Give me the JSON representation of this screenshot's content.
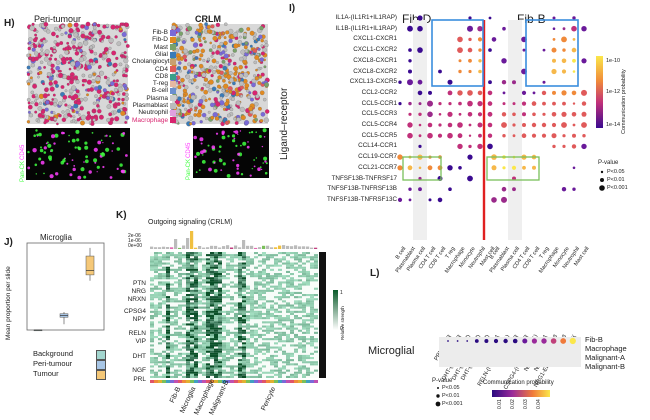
{
  "panel_h": {
    "letter": "H)",
    "peri_title": "Peri-tumour",
    "crlm_title": "CRLM",
    "legend": [
      {
        "label": "Fib-B",
        "color": "#7a6ad8"
      },
      {
        "label": "Fib-D",
        "color": "#e08a22"
      },
      {
        "label": "Mast",
        "color": "#7aa26a"
      },
      {
        "label": "Glial",
        "color": "#3a7bb8"
      },
      {
        "label": "Cholangiocyte",
        "color": "#c8a070"
      },
      {
        "label": "CD4",
        "color": "#e05a5a"
      },
      {
        "label": "CD8",
        "color": "#3aa08a"
      },
      {
        "label": "T-reg",
        "color": "#e6b8a2"
      },
      {
        "label": "B-cell",
        "color": "#6b8fd0"
      },
      {
        "label": "Plasma",
        "color": "#cccccc"
      },
      {
        "label": "Plasmablast",
        "color": "#bbbbbb"
      },
      {
        "label": "Neutrophil",
        "color": "#e0a0e0"
      },
      {
        "label": "Macrophage",
        "color": "#d8246f"
      }
    ],
    "fluor_label_left": "CD45",
    "fluor_label_bottom": "Pan-CK"
  },
  "panel_i": {
    "letter": "I)",
    "y_axis_title": "Ligand–receptor",
    "group_left": "Fib-D",
    "group_right": "Fib-B",
    "rows": [
      "IL1A-(IL1R1+IL1RAP)",
      "IL1B-(IL1R1+IL1RAP)",
      "CXCL1-CXCR1",
      "CXCL1-CXCR2",
      "CXCL8-CXCR1",
      "CXCL8-CXCR2",
      "CXCL13-CXCR5",
      "CCL2-CCR2",
      "CCL5-CCR1",
      "CCL5-CCR3",
      "CCL5-CCR4",
      "CCL5-CCR5",
      "CCL14-CCR1",
      "CCL19-CCR7",
      "CCL21-CCR7",
      "TNFSF13B-TNFRSF17",
      "TNFSF13B-TNFRSF13B",
      "TNFSF13B-TNFRSF13C"
    ],
    "cols": [
      "B cell",
      "Plasmablast",
      "Plasma cell",
      "CD4 T cell",
      "CD8 T cell",
      "T reg",
      "Macrophage",
      "Monocyte",
      "Neutrophil",
      "Mast cell"
    ],
    "colorbar_title": "Communication probability",
    "colorbar_ticks": [
      "1e-10",
      "1e-12",
      "1e-14"
    ],
    "pvalue_title": "P-value",
    "pvalue_items": [
      "P<0.05",
      "P<0.01",
      "P<0.001"
    ]
  },
  "panel_j": {
    "letter": "J)",
    "title": "Microglia",
    "ylabel": "Mean proportion per slide",
    "legend": [
      {
        "label": "Background",
        "color": "#a3d6cf"
      },
      {
        "label": "Peri-tumour",
        "color": "#a8c6e6"
      },
      {
        "label": "Tumour",
        "color": "#f5c878"
      }
    ],
    "chart_data": {
      "type": "box",
      "categories": [
        "Background",
        "Peri-tumour",
        "Tumour"
      ],
      "ylim": [
        0,
        0.3
      ],
      "stats": [
        {
          "min": 0,
          "q1": 0,
          "median": 0,
          "q3": 0,
          "max": 0
        },
        {
          "min": 0.02,
          "q1": 0.044,
          "median": 0.05,
          "q3": 0.056,
          "max": 0.062
        },
        {
          "min": 0.17,
          "q1": 0.19,
          "median": 0.205,
          "q3": 0.255,
          "max": 0.283
        }
      ]
    }
  },
  "panel_k": {
    "letter": "K)",
    "title": "Outgoing signaling (CRLM)",
    "y_ticks": [
      "2e-06",
      "1e-06",
      "0e+00"
    ],
    "row_labels": [
      "PTN",
      "NRG",
      "NRXN",
      "CPSG4",
      "NPY",
      "RELN",
      "VIP",
      "DHT",
      "NGF",
      "PRL"
    ],
    "col_labels": [
      "Fib-B",
      "Microglia",
      "Macrophage",
      "Malignant-B",
      "Pericyte"
    ],
    "scale_title": "Relative strength",
    "scale_ticks": [
      "1",
      "0"
    ]
  },
  "panel_l": {
    "letter": "L)",
    "source": "Microglial",
    "col_labels": [
      "PRL-PRLR",
      "NGF-NGFR",
      "DHT-(SRD5A1+AR)",
      "DHT-(SRD5A3+AR)",
      "DHT-(SRD5A2+AR)",
      "VIP-VIPR1",
      "RELN-(ITGA3+ITGB1)",
      "NPY-NPY1R",
      "NPY-NPY5R",
      "CSPG4-(ITGA4+ITGB1)",
      "NRXN1-NLGN1",
      "NRXN1-NLGN3",
      "NRG1-ERBB2+ERBB3",
      "PTN-ALK"
    ],
    "row_labels": [
      "Fib-B",
      "Macrophage",
      "Malignant-A",
      "Malignant-B"
    ],
    "pvalue_title": "P-value",
    "pvalue_items": [
      "P<0.05",
      "P<0.01",
      "P<0.001"
    ],
    "colorbar_title": "Communication probability",
    "colorbar_ticks": [
      "0.01",
      "0.02",
      "0.03",
      "0.04"
    ]
  }
}
